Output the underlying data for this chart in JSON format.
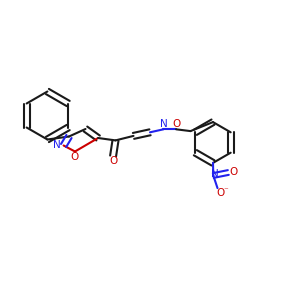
{
  "bg_color": "#ffffff",
  "bond_color": "#1a1a1a",
  "n_color": "#2222ee",
  "o_color": "#cc0000",
  "lw": 1.5,
  "dbl_off": 0.012,
  "fs": 7.5,
  "figw": 3.0,
  "figh": 3.0,
  "dpi": 100,
  "xlim": [
    0.0,
    1.0
  ],
  "ylim": [
    0.0,
    1.0
  ]
}
